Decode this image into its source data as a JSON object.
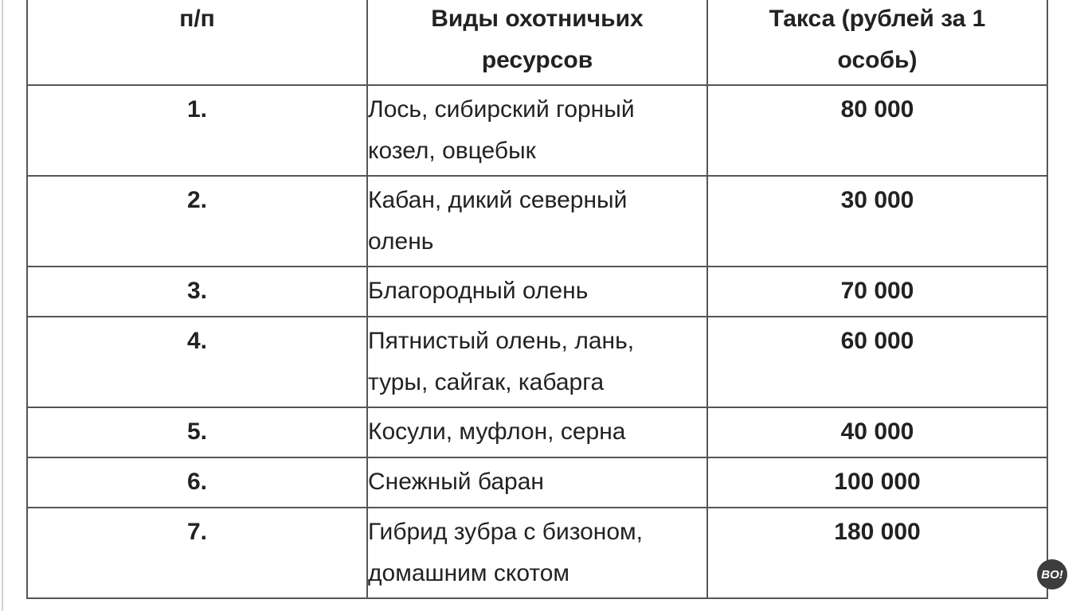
{
  "table": {
    "headers": [
      "п/п",
      "Виды охотничьих ресурсов",
      "Такса (рублей за 1 особь)"
    ],
    "rows": [
      {
        "num": "1.",
        "name": "Лось, сибирский горный козел, овцебык",
        "price": "80 000"
      },
      {
        "num": "2.",
        "name": "Кабан, дикий северный олень",
        "price": "30 000"
      },
      {
        "num": "3.",
        "name": "Благородный олень",
        "price": "70 000"
      },
      {
        "num": "4.",
        "name": "Пятнистый олень, лань, туры, сайгак, кабарга",
        "price": "60 000"
      },
      {
        "num": "5.",
        "name": "Косули, муфлон, серна",
        "price": "40 000"
      },
      {
        "num": "6.",
        "name": "Снежный баран",
        "price": "100 000"
      },
      {
        "num": "7.",
        "name": "Гибрид зубра с бизоном, домашним скотом",
        "price": "180 000"
      }
    ]
  },
  "logo": {
    "text": "BO!"
  }
}
